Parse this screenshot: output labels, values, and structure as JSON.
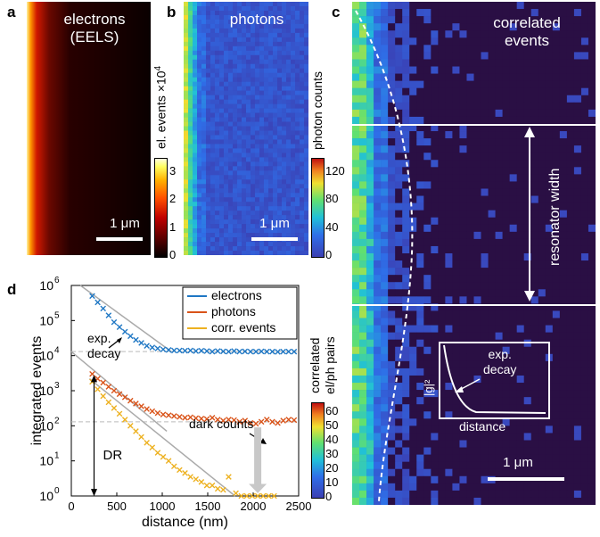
{
  "panels": {
    "a": {
      "letter": "a",
      "title": "electrons\n(EELS)",
      "scale": "1 μm",
      "colorbar": {
        "label": "el. events",
        "exponent": "×10",
        "exponent_power": "4",
        "ticks": [
          "0",
          "1",
          "2",
          "3"
        ],
        "range": [
          0,
          3.5
        ]
      }
    },
    "b": {
      "letter": "b",
      "title": "photons",
      "scale": "1 μm",
      "colorbar": {
        "label": "photon counts",
        "ticks": [
          "0",
          "40",
          "80",
          "120"
        ],
        "range": [
          0,
          140
        ]
      }
    },
    "c": {
      "letter": "c",
      "title": "correlated\nevents",
      "scale": "1 μm",
      "resonator_label": "resonator\nwidth",
      "inset": {
        "ylabel": "|g|²",
        "xlabel": "distance",
        "annotation": "exp.\ndecay"
      }
    },
    "d": {
      "letter": "d",
      "colorbar": {
        "label": "correlated\nel/ph pairs",
        "ticks": [
          "0",
          "10",
          "20",
          "30",
          "40",
          "50",
          "60"
        ],
        "range": [
          0,
          65
        ]
      },
      "annotations": {
        "exp_decay": "exp.\ndecay",
        "dark_counts": "dark counts",
        "dr": "DR"
      }
    }
  },
  "chart_data": {
    "type": "scatter",
    "xlabel": "distance (nm)",
    "ylabel": "integrated events",
    "xlim": [
      0,
      2500
    ],
    "ylim": [
      1,
      1000000
    ],
    "yscale": "log",
    "x_ticks": [
      "0",
      "500",
      "1000",
      "1500",
      "2000",
      "2500"
    ],
    "y_ticks": [
      {
        "base": "10",
        "exp": "0"
      },
      {
        "base": "10",
        "exp": "1"
      },
      {
        "base": "10",
        "exp": "2"
      },
      {
        "base": "10",
        "exp": "3"
      },
      {
        "base": "10",
        "exp": "4"
      },
      {
        "base": "10",
        "exp": "5"
      },
      {
        "base": "10",
        "exp": "6"
      }
    ],
    "legend_position": "top-right",
    "series": [
      {
        "name": "electrons",
        "color": "#1f77c4",
        "x": [
          230,
          290,
          350,
          410,
          470,
          530,
          590,
          650,
          710,
          770,
          830,
          890,
          950,
          1010,
          1070,
          1130,
          1190,
          1250,
          1310,
          1370,
          1430,
          1490,
          1550,
          1610,
          1670,
          1730,
          1790,
          1850,
          1910,
          1970,
          2030,
          2090,
          2150,
          2210,
          2270,
          2330,
          2390,
          2450
        ],
        "y": [
          500000,
          330000,
          220000,
          140000,
          90000,
          65000,
          48000,
          36000,
          28000,
          23000,
          19000,
          17000,
          16000,
          15000,
          14500,
          14000,
          14000,
          13800,
          14000,
          13500,
          13800,
          13500,
          13000,
          13500,
          13200,
          13000,
          13500,
          13000,
          13200,
          13000,
          13000,
          13200,
          13000,
          13000,
          12800,
          13000,
          13000,
          13000
        ]
      },
      {
        "name": "photons",
        "color": "#d95319",
        "x": [
          230,
          290,
          350,
          410,
          470,
          530,
          590,
          650,
          710,
          770,
          830,
          890,
          950,
          1010,
          1070,
          1130,
          1190,
          1250,
          1310,
          1370,
          1430,
          1490,
          1550,
          1610,
          1670,
          1730,
          1790,
          1850,
          1910,
          1970,
          2030,
          2090,
          2150,
          2210,
          2270,
          2330,
          2390,
          2450
        ],
        "y": [
          3000,
          2200,
          1700,
          1300,
          1000,
          800,
          650,
          520,
          430,
          360,
          300,
          260,
          230,
          210,
          200,
          190,
          180,
          170,
          175,
          165,
          160,
          155,
          170,
          150,
          140,
          150,
          145,
          130,
          140,
          120,
          115,
          130,
          150,
          130,
          120,
          140,
          150,
          145
        ]
      },
      {
        "name": "corr. events",
        "color": "#edb120",
        "x": [
          230,
          290,
          350,
          410,
          470,
          530,
          590,
          650,
          710,
          770,
          830,
          890,
          950,
          1010,
          1070,
          1130,
          1190,
          1250,
          1310,
          1370,
          1430,
          1490,
          1550,
          1610,
          1670,
          1730,
          1810,
          1870,
          1930,
          1990,
          2050,
          2110,
          2170,
          2230
        ],
        "y": [
          1800,
          1100,
          700,
          470,
          320,
          220,
          150,
          100,
          70,
          48,
          33,
          24,
          17,
          13,
          10,
          7,
          5.5,
          4.5,
          3.5,
          3,
          2.5,
          2,
          2,
          1.6,
          1.5,
          3.5,
          1.2,
          1,
          1,
          1,
          1,
          1,
          1,
          1
        ]
      }
    ],
    "reference_lines": [
      {
        "style": "dashed",
        "y": 13000
      },
      {
        "style": "dashed",
        "y": 130
      }
    ]
  }
}
